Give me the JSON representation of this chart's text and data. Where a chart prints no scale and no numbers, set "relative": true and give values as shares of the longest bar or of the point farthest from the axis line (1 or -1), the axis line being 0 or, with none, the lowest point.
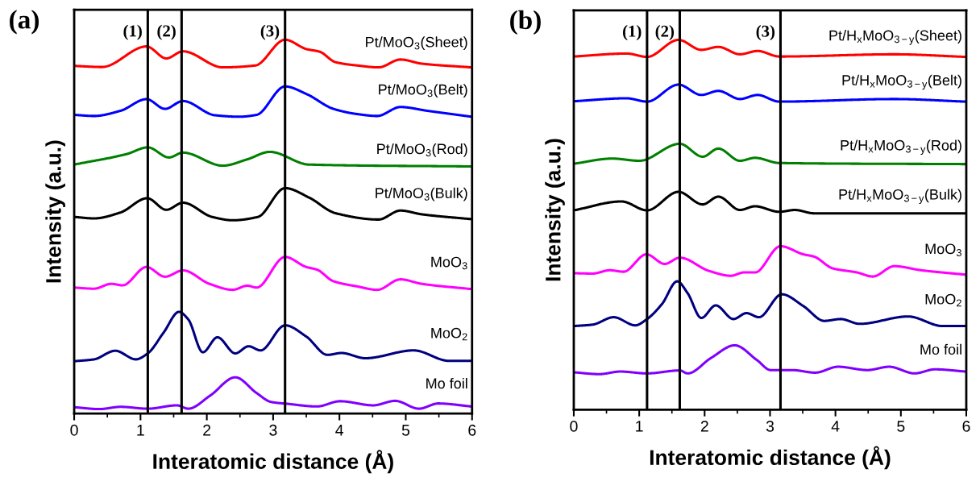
{
  "chart_data": [
    {
      "type": "line",
      "xlabel": "Interatomic distance (Å)",
      "ylabel": "Intensity (a.u.)",
      "annotations": [
        "(a)"
      ],
      "relative": true,
      "tick_labels": "x",
      "legend": false,
      "grid": false,
      "xlim": [
        0,
        6
      ],
      "xticks": [
        0,
        1,
        2,
        3,
        4,
        5,
        6
      ],
      "ref_lines": [
        {
          "axis": "x",
          "value": 1.11,
          "label": "(1)",
          "color": "#000000"
        },
        {
          "axis": "x",
          "value": 1.62,
          "label": "(2)",
          "color": "#000000"
        },
        {
          "axis": "x",
          "value": 3.18,
          "label": "(3)",
          "color": "#000000"
        }
      ],
      "series": [
        {
          "name": "Pt/MoO$_{3}$(Sheet)",
          "color": "#ff0000",
          "x": [
            0,
            0.42,
            1.09,
            1.39,
            1.64,
            2.24,
            2.73,
            3.18,
            3.5,
            3.7,
            3.94,
            4.27,
            4.59,
            4.92,
            5.24,
            5.99
          ],
          "values": [
            0.93,
            0.927,
            0.982,
            0.95,
            0.969,
            0.926,
            0.931,
            1.0,
            0.975,
            0.968,
            0.94,
            0.931,
            0.926,
            0.947,
            0.936,
            0.926
          ]
        },
        {
          "name": "Pt/MoO$_{3}$(Belt)",
          "color": "#0000ff",
          "x": [
            0,
            0.3,
            0.7,
            1.09,
            1.37,
            1.64,
            2.12,
            2.49,
            2.75,
            3.18,
            3.5,
            3.91,
            4.27,
            4.57,
            4.92,
            5.32,
            5.99
          ],
          "values": [
            0.799,
            0.796,
            0.81,
            0.841,
            0.815,
            0.836,
            0.798,
            0.794,
            0.799,
            0.875,
            0.855,
            0.815,
            0.801,
            0.796,
            0.82,
            0.81,
            0.794
          ]
        },
        {
          "name": "Pt/MoO$_{3}$(Rod)",
          "color": "#008000",
          "x": [
            0,
            0.79,
            1.11,
            1.43,
            1.64,
            2.24,
            2.61,
            2.95,
            3.54,
            5.99
          ],
          "values": [
            0.666,
            0.694,
            0.712,
            0.685,
            0.698,
            0.663,
            0.68,
            0.7,
            0.666,
            0.661
          ]
        },
        {
          "name": "Pt/MoO$_{3}$(Bulk)",
          "color": "#000000",
          "x": [
            0,
            0.3,
            0.7,
            1.1,
            1.39,
            1.64,
            2.08,
            2.39,
            2.77,
            3.18,
            3.54,
            3.94,
            4.59,
            4.92,
            5.24,
            5.99
          ],
          "values": [
            0.526,
            0.522,
            0.538,
            0.576,
            0.545,
            0.564,
            0.526,
            0.517,
            0.526,
            0.603,
            0.578,
            0.536,
            0.519,
            0.543,
            0.533,
            0.52
          ]
        },
        {
          "name": "MoO$_{3}$",
          "color": "#ff00ff",
          "x": [
            0,
            0.3,
            0.56,
            0.73,
            1.09,
            1.37,
            1.64,
            2.04,
            2.39,
            2.61,
            2.75,
            3.18,
            3.5,
            3.66,
            3.91,
            4.27,
            4.57,
            4.92,
            5.24,
            5.99
          ],
          "values": [
            0.337,
            0.334,
            0.347,
            0.343,
            0.392,
            0.366,
            0.383,
            0.347,
            0.331,
            0.342,
            0.337,
            0.419,
            0.392,
            0.385,
            0.354,
            0.34,
            0.331,
            0.359,
            0.347,
            0.333
          ]
        },
        {
          "name": "MoO$_{2}$",
          "color": "#000080",
          "x": [
            0,
            0.3,
            0.62,
            0.93,
            1.11,
            1.35,
            1.58,
            1.72,
            1.94,
            2.16,
            2.43,
            2.63,
            2.81,
            3.18,
            3.5,
            3.82,
            4.03,
            4.39,
            5.12,
            5.65,
            5.99
          ],
          "values": [
            0.14,
            0.145,
            0.168,
            0.145,
            0.161,
            0.217,
            0.272,
            0.252,
            0.164,
            0.204,
            0.161,
            0.18,
            0.169,
            0.236,
            0.206,
            0.157,
            0.162,
            0.148,
            0.169,
            0.141,
            0.141
          ]
        },
        {
          "name": "Mo foil",
          "color": "#8000ff",
          "x": [
            0,
            0.38,
            0.7,
            1.11,
            1.55,
            1.72,
            2.05,
            2.43,
            2.75,
            2.97,
            3.22,
            3.66,
            4.01,
            4.51,
            4.84,
            5.2,
            5.49,
            5.99
          ],
          "values": [
            0.017,
            0.012,
            0.018,
            0.013,
            0.022,
            0.013,
            0.048,
            0.097,
            0.055,
            0.031,
            0.026,
            0.019,
            0.033,
            0.022,
            0.034,
            0.013,
            0.027,
            0.019
          ]
        }
      ]
    },
    {
      "type": "line",
      "xlabel": "Interatomic distance (Å)",
      "ylabel": "Intensity (a.u.)",
      "annotations": [
        "(b)"
      ],
      "relative": true,
      "tick_labels": "x",
      "legend": false,
      "grid": false,
      "xlim": [
        0,
        6
      ],
      "xticks": [
        0,
        1,
        2,
        3,
        4,
        5,
        6
      ],
      "ref_lines": [
        {
          "axis": "x",
          "value": 1.12,
          "label": "(1)",
          "color": "#000000"
        },
        {
          "axis": "x",
          "value": 1.62,
          "label": "(2)",
          "color": "#000000"
        },
        {
          "axis": "x",
          "value": 3.16,
          "label": "(3)",
          "color": "#000000"
        }
      ],
      "series": [
        {
          "name": "Pt/H$_{x}$MoO$_{3−y}$(Sheet)",
          "color": "#ff0000",
          "x": [
            0,
            0.81,
            1.12,
            1.6,
            1.95,
            2.21,
            2.54,
            2.81,
            3.14,
            4.9,
            5.99
          ],
          "values": [
            0.955,
            0.963,
            0.954,
            1.0,
            0.973,
            0.981,
            0.961,
            0.97,
            0.955,
            0.961,
            0.954
          ]
        },
        {
          "name": "Pt/H$_{x}$MoO$_{3−y}$(Belt)",
          "color": "#0000ff",
          "x": [
            0,
            0.81,
            1.12,
            1.6,
            1.95,
            2.21,
            2.54,
            2.81,
            3.14,
            4.9,
            5.99
          ],
          "values": [
            0.834,
            0.842,
            0.833,
            0.879,
            0.851,
            0.862,
            0.84,
            0.851,
            0.833,
            0.84,
            0.833
          ]
        },
        {
          "name": "Pt/H$_{x}$MoO$_{3−y}$(Rod)",
          "color": "#008000",
          "x": [
            0,
            0.59,
            1.0,
            1.62,
            1.97,
            2.21,
            2.54,
            2.77,
            3.14,
            5.99
          ],
          "values": [
            0.665,
            0.679,
            0.673,
            0.719,
            0.684,
            0.706,
            0.673,
            0.681,
            0.667,
            0.664
          ]
        },
        {
          "name": "Pt/H$_{x}$MoO$_{3−y}$(Bulk)",
          "color": "#000000",
          "x": [
            0,
            0.73,
            1.12,
            1.6,
            1.97,
            2.21,
            2.54,
            2.77,
            3.14,
            3.38,
            3.67,
            5.99
          ],
          "values": [
            0.539,
            0.563,
            0.539,
            0.589,
            0.555,
            0.576,
            0.54,
            0.55,
            0.535,
            0.54,
            0.531,
            0.531
          ]
        },
        {
          "name": "MoO$_{3}$",
          "color": "#ff00ff",
          "x": [
            0,
            0.29,
            0.55,
            0.76,
            1.11,
            1.39,
            1.62,
            2.07,
            2.4,
            2.6,
            2.77,
            3.16,
            3.51,
            3.67,
            3.96,
            4.33,
            4.57,
            4.9,
            5.31,
            5.99
          ],
          "values": [
            0.369,
            0.368,
            0.377,
            0.373,
            0.42,
            0.394,
            0.411,
            0.375,
            0.362,
            0.371,
            0.371,
            0.442,
            0.42,
            0.414,
            0.382,
            0.371,
            0.36,
            0.388,
            0.377,
            0.365
          ]
        },
        {
          "name": "MoO$_{2}$",
          "color": "#000080",
          "x": [
            0,
            0.29,
            0.61,
            0.94,
            1.12,
            1.35,
            1.58,
            1.74,
            1.95,
            2.17,
            2.44,
            2.64,
            2.83,
            3.18,
            3.51,
            3.83,
            4.08,
            4.37,
            5.11,
            5.64,
            5.99
          ],
          "values": [
            0.226,
            0.23,
            0.25,
            0.228,
            0.245,
            0.286,
            0.347,
            0.315,
            0.248,
            0.282,
            0.245,
            0.261,
            0.25,
            0.312,
            0.28,
            0.24,
            0.245,
            0.232,
            0.252,
            0.226,
            0.226
          ]
        },
        {
          "name": "Mo foil",
          "color": "#8000ff",
          "x": [
            0,
            0.39,
            0.71,
            1.12,
            1.62,
            1.74,
            2.1,
            2.46,
            2.8,
            3.01,
            3.34,
            3.69,
            4.04,
            4.49,
            4.82,
            5.21,
            5.52,
            5.99
          ],
          "values": [
            0.101,
            0.096,
            0.103,
            0.098,
            0.106,
            0.098,
            0.14,
            0.174,
            0.134,
            0.107,
            0.107,
            0.1,
            0.116,
            0.107,
            0.116,
            0.098,
            0.109,
            0.103
          ]
        }
      ]
    }
  ]
}
